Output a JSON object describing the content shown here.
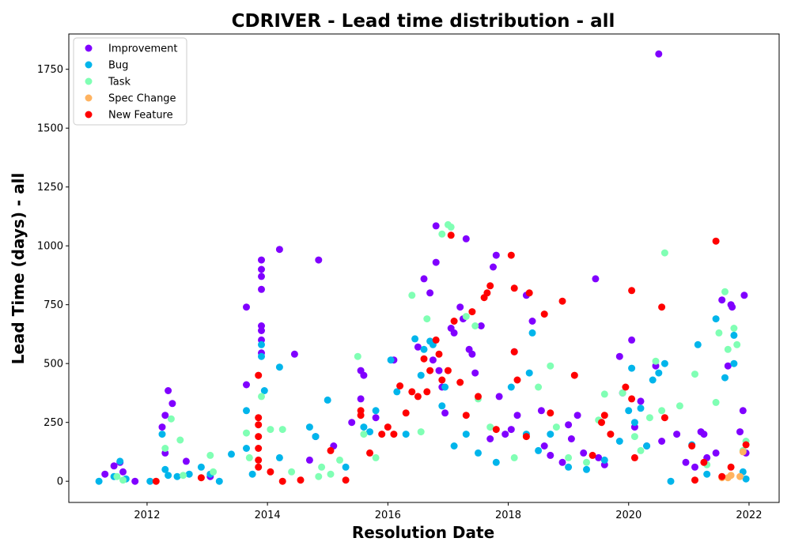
{
  "chart_data": {
    "type": "scatter",
    "title": "CDRIVER - Lead time distribution - all",
    "xlabel": "Resolution Date",
    "ylabel": "Lead Time (days) - all",
    "xlim": [
      2010.7,
      2022.5
    ],
    "ylim": [
      -90,
      1900
    ],
    "x_ticks": [
      2012,
      2014,
      2016,
      2018,
      2020,
      2022
    ],
    "x_tick_labels": [
      "2012",
      "2014",
      "2016",
      "2018",
      "2020",
      "2022"
    ],
    "y_ticks": [
      0,
      250,
      500,
      750,
      1000,
      1250,
      1500,
      1750
    ],
    "y_tick_labels": [
      "0",
      "250",
      "500",
      "750",
      "1000",
      "1250",
      "1500",
      "1750"
    ],
    "grid": false,
    "legend_position": "upper left",
    "series": [
      {
        "name": "Improvement",
        "color": "#8000ff",
        "points": [
          [
            2011.3,
            30
          ],
          [
            2011.45,
            65
          ],
          [
            2011.55,
            80
          ],
          [
            2011.6,
            40
          ],
          [
            2011.8,
            0
          ],
          [
            2012.25,
            230
          ],
          [
            2012.3,
            280
          ],
          [
            2012.35,
            385
          ],
          [
            2012.42,
            330
          ],
          [
            2012.3,
            120
          ],
          [
            2012.65,
            85
          ],
          [
            2013.05,
            20
          ],
          [
            2013.65,
            740
          ],
          [
            2013.65,
            410
          ],
          [
            2013.9,
            940
          ],
          [
            2013.9,
            900
          ],
          [
            2013.9,
            870
          ],
          [
            2013.9,
            815
          ],
          [
            2013.9,
            660
          ],
          [
            2013.9,
            640
          ],
          [
            2013.9,
            600
          ],
          [
            2013.9,
            545
          ],
          [
            2014.2,
            985
          ],
          [
            2014.45,
            540
          ],
          [
            2014.85,
            940
          ],
          [
            2014.8,
            190
          ],
          [
            2014.7,
            90
          ],
          [
            2015.1,
            150
          ],
          [
            2015.4,
            250
          ],
          [
            2015.55,
            470
          ],
          [
            2015.6,
            450
          ],
          [
            2015.55,
            350
          ],
          [
            2015.8,
            270
          ],
          [
            2016.1,
            515
          ],
          [
            2016.5,
            570
          ],
          [
            2016.6,
            860
          ],
          [
            2016.7,
            800
          ],
          [
            2016.8,
            1085
          ],
          [
            2016.8,
            930
          ],
          [
            2016.75,
            515
          ],
          [
            2016.85,
            470
          ],
          [
            2016.9,
            400
          ],
          [
            2016.95,
            290
          ],
          [
            2017.05,
            650
          ],
          [
            2017.1,
            630
          ],
          [
            2017.2,
            740
          ],
          [
            2017.25,
            690
          ],
          [
            2017.3,
            1030
          ],
          [
            2017.35,
            560
          ],
          [
            2017.4,
            540
          ],
          [
            2017.45,
            460
          ],
          [
            2017.55,
            660
          ],
          [
            2017.7,
            180
          ],
          [
            2017.75,
            910
          ],
          [
            2017.8,
            960
          ],
          [
            2017.85,
            360
          ],
          [
            2017.95,
            200
          ],
          [
            2018.05,
            220
          ],
          [
            2018.1,
            550
          ],
          [
            2018.15,
            280
          ],
          [
            2018.3,
            790
          ],
          [
            2018.4,
            680
          ],
          [
            2018.55,
            300
          ],
          [
            2018.6,
            150
          ],
          [
            2018.7,
            110
          ],
          [
            2018.9,
            80
          ],
          [
            2019.0,
            240
          ],
          [
            2019.05,
            180
          ],
          [
            2019.15,
            280
          ],
          [
            2019.25,
            120
          ],
          [
            2019.45,
            860
          ],
          [
            2019.5,
            100
          ],
          [
            2019.6,
            70
          ],
          [
            2019.85,
            530
          ],
          [
            2019.9,
            375
          ],
          [
            2020.05,
            600
          ],
          [
            2020.1,
            230
          ],
          [
            2020.2,
            340
          ],
          [
            2020.3,
            150
          ],
          [
            2020.45,
            490
          ],
          [
            2020.5,
            1815
          ],
          [
            2020.55,
            170
          ],
          [
            2020.8,
            200
          ],
          [
            2020.95,
            80
          ],
          [
            2021.1,
            60
          ],
          [
            2021.2,
            210
          ],
          [
            2021.25,
            200
          ],
          [
            2021.3,
            100
          ],
          [
            2021.45,
            120
          ],
          [
            2021.55,
            770
          ],
          [
            2021.65,
            490
          ],
          [
            2021.7,
            750
          ],
          [
            2021.72,
            740
          ],
          [
            2021.85,
            210
          ],
          [
            2021.9,
            300
          ],
          [
            2021.92,
            790
          ],
          [
            2021.95,
            120
          ]
        ]
      },
      {
        "name": "Bug",
        "color": "#00b5eb",
        "points": [
          [
            2011.2,
            0
          ],
          [
            2011.45,
            20
          ],
          [
            2011.55,
            85
          ],
          [
            2011.65,
            10
          ],
          [
            2012.05,
            0
          ],
          [
            2012.25,
            200
          ],
          [
            2012.3,
            50
          ],
          [
            2012.35,
            25
          ],
          [
            2012.5,
            20
          ],
          [
            2012.7,
            30
          ],
          [
            2012.9,
            60
          ],
          [
            2013.05,
            30
          ],
          [
            2013.2,
            0
          ],
          [
            2013.4,
            115
          ],
          [
            2013.65,
            300
          ],
          [
            2013.65,
            140
          ],
          [
            2013.75,
            30
          ],
          [
            2013.9,
            580
          ],
          [
            2013.9,
            530
          ],
          [
            2013.95,
            385
          ],
          [
            2014.2,
            485
          ],
          [
            2014.2,
            100
          ],
          [
            2014.7,
            230
          ],
          [
            2014.8,
            190
          ],
          [
            2015.0,
            345
          ],
          [
            2015.3,
            60
          ],
          [
            2015.6,
            230
          ],
          [
            2015.7,
            210
          ],
          [
            2015.8,
            300
          ],
          [
            2016.05,
            515
          ],
          [
            2016.15,
            380
          ],
          [
            2016.3,
            200
          ],
          [
            2016.45,
            605
          ],
          [
            2016.55,
            450
          ],
          [
            2016.6,
            560
          ],
          [
            2016.7,
            595
          ],
          [
            2016.75,
            580
          ],
          [
            2016.9,
            320
          ],
          [
            2016.95,
            400
          ],
          [
            2017.1,
            150
          ],
          [
            2017.3,
            200
          ],
          [
            2017.5,
            120
          ],
          [
            2017.8,
            80
          ],
          [
            2018.05,
            400
          ],
          [
            2018.3,
            200
          ],
          [
            2018.35,
            460
          ],
          [
            2018.4,
            630
          ],
          [
            2018.5,
            130
          ],
          [
            2018.7,
            200
          ],
          [
            2019.0,
            60
          ],
          [
            2019.3,
            50
          ],
          [
            2019.6,
            90
          ],
          [
            2019.85,
            170
          ],
          [
            2020.0,
            300
          ],
          [
            2020.05,
            480
          ],
          [
            2020.1,
            250
          ],
          [
            2020.2,
            310
          ],
          [
            2020.3,
            150
          ],
          [
            2020.4,
            430
          ],
          [
            2020.5,
            460
          ],
          [
            2020.6,
            500
          ],
          [
            2020.7,
            0
          ],
          [
            2021.05,
            155
          ],
          [
            2021.15,
            580
          ],
          [
            2021.3,
            30
          ],
          [
            2021.45,
            690
          ],
          [
            2021.6,
            440
          ],
          [
            2021.75,
            620
          ],
          [
            2021.75,
            500
          ],
          [
            2021.9,
            40
          ],
          [
            2021.95,
            10
          ]
        ]
      },
      {
        "name": "Task",
        "color": "#80ffb4",
        "points": [
          [
            2011.5,
            20
          ],
          [
            2011.6,
            5
          ],
          [
            2012.3,
            140
          ],
          [
            2012.4,
            265
          ],
          [
            2012.55,
            175
          ],
          [
            2012.6,
            25
          ],
          [
            2013.05,
            110
          ],
          [
            2013.1,
            40
          ],
          [
            2013.65,
            205
          ],
          [
            2013.7,
            100
          ],
          [
            2013.9,
            360
          ],
          [
            2014.05,
            220
          ],
          [
            2014.25,
            220
          ],
          [
            2014.4,
            40
          ],
          [
            2014.9,
            60
          ],
          [
            2014.85,
            20
          ],
          [
            2015.05,
            30
          ],
          [
            2015.2,
            90
          ],
          [
            2015.5,
            530
          ],
          [
            2015.6,
            200
          ],
          [
            2015.8,
            100
          ],
          [
            2016.4,
            790
          ],
          [
            2016.55,
            210
          ],
          [
            2016.65,
            690
          ],
          [
            2016.9,
            1050
          ],
          [
            2017.0,
            1090
          ],
          [
            2017.05,
            1080
          ],
          [
            2017.3,
            700
          ],
          [
            2017.45,
            660
          ],
          [
            2017.5,
            350
          ],
          [
            2017.7,
            230
          ],
          [
            2018.1,
            100
          ],
          [
            2018.5,
            400
          ],
          [
            2018.7,
            490
          ],
          [
            2018.8,
            230
          ],
          [
            2019.0,
            100
          ],
          [
            2019.3,
            80
          ],
          [
            2019.5,
            260
          ],
          [
            2019.6,
            370
          ],
          [
            2019.9,
            375
          ],
          [
            2020.1,
            190
          ],
          [
            2020.2,
            130
          ],
          [
            2020.35,
            270
          ],
          [
            2020.45,
            510
          ],
          [
            2020.55,
            300
          ],
          [
            2020.6,
            970
          ],
          [
            2020.85,
            320
          ],
          [
            2021.1,
            455
          ],
          [
            2021.3,
            70
          ],
          [
            2021.45,
            335
          ],
          [
            2021.5,
            630
          ],
          [
            2021.6,
            805
          ],
          [
            2021.65,
            560
          ],
          [
            2021.75,
            650
          ],
          [
            2021.8,
            580
          ],
          [
            2021.9,
            130
          ],
          [
            2021.95,
            170
          ]
        ]
      },
      {
        "name": "Spec Change",
        "color": "#ffb360",
        "points": [
          [
            2021.55,
            15
          ],
          [
            2021.65,
            15
          ],
          [
            2021.7,
            25
          ],
          [
            2021.85,
            20
          ],
          [
            2021.9,
            125
          ]
        ]
      },
      {
        "name": "New Feature",
        "color": "#ff0000",
        "points": [
          [
            2012.15,
            0
          ],
          [
            2012.9,
            15
          ],
          [
            2013.85,
            450
          ],
          [
            2013.85,
            270
          ],
          [
            2013.85,
            240
          ],
          [
            2013.85,
            190
          ],
          [
            2013.85,
            140
          ],
          [
            2013.85,
            90
          ],
          [
            2013.85,
            60
          ],
          [
            2014.05,
            40
          ],
          [
            2014.25,
            0
          ],
          [
            2014.55,
            5
          ],
          [
            2015.05,
            130
          ],
          [
            2015.3,
            5
          ],
          [
            2015.55,
            300
          ],
          [
            2015.55,
            280
          ],
          [
            2015.7,
            120
          ],
          [
            2015.9,
            200
          ],
          [
            2016.0,
            230
          ],
          [
            2016.1,
            200
          ],
          [
            2016.2,
            405
          ],
          [
            2016.3,
            290
          ],
          [
            2016.4,
            380
          ],
          [
            2016.5,
            360
          ],
          [
            2016.6,
            520
          ],
          [
            2016.65,
            380
          ],
          [
            2016.7,
            470
          ],
          [
            2016.8,
            600
          ],
          [
            2016.85,
            540
          ],
          [
            2016.9,
            430
          ],
          [
            2017.0,
            470
          ],
          [
            2017.05,
            1045
          ],
          [
            2017.1,
            680
          ],
          [
            2017.2,
            420
          ],
          [
            2017.3,
            280
          ],
          [
            2017.4,
            720
          ],
          [
            2017.5,
            360
          ],
          [
            2017.6,
            780
          ],
          [
            2017.65,
            800
          ],
          [
            2017.7,
            830
          ],
          [
            2017.8,
            220
          ],
          [
            2018.05,
            960
          ],
          [
            2018.1,
            820
          ],
          [
            2018.1,
            550
          ],
          [
            2018.15,
            430
          ],
          [
            2018.3,
            190
          ],
          [
            2018.35,
            800
          ],
          [
            2018.6,
            710
          ],
          [
            2018.7,
            290
          ],
          [
            2018.9,
            765
          ],
          [
            2019.1,
            450
          ],
          [
            2019.4,
            110
          ],
          [
            2019.55,
            250
          ],
          [
            2019.6,
            280
          ],
          [
            2019.7,
            200
          ],
          [
            2019.95,
            400
          ],
          [
            2020.05,
            810
          ],
          [
            2020.05,
            350
          ],
          [
            2020.1,
            100
          ],
          [
            2020.55,
            740
          ],
          [
            2020.6,
            270
          ],
          [
            2021.05,
            150
          ],
          [
            2021.1,
            5
          ],
          [
            2021.25,
            80
          ],
          [
            2021.45,
            1020
          ],
          [
            2021.55,
            20
          ],
          [
            2021.7,
            60
          ],
          [
            2021.95,
            155
          ]
        ]
      }
    ]
  }
}
